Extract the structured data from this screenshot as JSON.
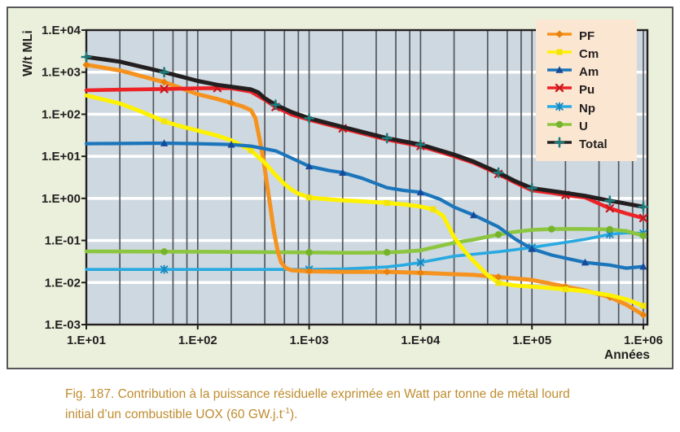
{
  "figure": {
    "background": "#EAF0DB",
    "frame_color": "#55565A",
    "caption": {
      "color": "#BF8C2F",
      "line1": "Fig. 187. Contribution à la puissance résiduelle exprimée en Watt par tonne de métal lourd",
      "line2_pre": "initial d’un combustible UOX (60 GW.j.t",
      "line2_sup": "-1",
      "line2_post": ")."
    }
  },
  "chart_data": {
    "type": "line",
    "x_scale": "log",
    "y_scale": "log",
    "x_range": [
      10,
      1000000
    ],
    "y_range": [
      0.001,
      10000
    ],
    "xlabel": "Années",
    "ylabel": "W/t MLi",
    "x_tick_labels": [
      "1.E+01",
      "1.E+02",
      "1.E+03",
      "1.E+04",
      "1.E+05",
      "1.E+06"
    ],
    "y_tick_labels": [
      "1.E+04",
      "1.E+03",
      "1.E+02",
      "1.E+01",
      "1.E+00",
      "1.E-01",
      "1.E-02",
      "1.E-03"
    ],
    "grid": {
      "plot_background": "#CDD8E0",
      "horizontal_color": "#FFFFFF",
      "vertical_color": "#54565B",
      "axis_color": "#231F20",
      "vertical_minor_multipliers": [
        2,
        4,
        6,
        8
      ]
    },
    "legend_position": "top-right",
    "legend_background": "#FBE7D1",
    "series": [
      {
        "name": "PF",
        "color": "#F6921E",
        "marker": "diamond",
        "marker_color": "#E8820C",
        "width": 5,
        "z": 3,
        "points": [
          [
            10,
            1500
          ],
          [
            20,
            1100
          ],
          [
            50,
            580
          ],
          [
            100,
            300
          ],
          [
            150,
            230
          ],
          [
            200,
            185
          ],
          [
            250,
            155
          ],
          [
            300,
            125
          ],
          [
            330,
            80
          ],
          [
            360,
            25
          ],
          [
            390,
            8
          ],
          [
            420,
            2
          ],
          [
            450,
            0.6
          ],
          [
            480,
            0.18
          ],
          [
            520,
            0.06
          ],
          [
            560,
            0.03
          ],
          [
            620,
            0.022
          ],
          [
            700,
            0.0195
          ],
          [
            1000,
            0.0185
          ],
          [
            2000,
            0.018
          ],
          [
            5000,
            0.018
          ],
          [
            10000,
            0.017
          ],
          [
            20000,
            0.0158
          ],
          [
            30000,
            0.0152
          ],
          [
            50000,
            0.0135
          ],
          [
            100000,
            0.0115
          ],
          [
            200000,
            0.008
          ],
          [
            300000,
            0.0065
          ],
          [
            500000,
            0.0045
          ],
          [
            700000,
            0.003
          ],
          [
            1000000,
            0.0017
          ]
        ],
        "marker_x": [
          10,
          50,
          200,
          1000,
          5000,
          10000,
          50000,
          200000,
          500000,
          1000000
        ]
      },
      {
        "name": "Cm",
        "color": "#FFF200",
        "marker": "square",
        "marker_color": "#F2E30A",
        "width": 5,
        "z": 4,
        "points": [
          [
            10,
            280
          ],
          [
            20,
            180
          ],
          [
            30,
            120
          ],
          [
            50,
            68
          ],
          [
            70,
            52
          ],
          [
            100,
            41
          ],
          [
            150,
            31
          ],
          [
            200,
            24
          ],
          [
            300,
            14
          ],
          [
            400,
            7
          ],
          [
            500,
            3.6
          ],
          [
            600,
            2.2
          ],
          [
            700,
            1.6
          ],
          [
            800,
            1.3
          ],
          [
            1000,
            1.05
          ],
          [
            1500,
            0.95
          ],
          [
            2000,
            0.9
          ],
          [
            3000,
            0.85
          ],
          [
            5000,
            0.78
          ],
          [
            7000,
            0.72
          ],
          [
            10000,
            0.64
          ],
          [
            13000,
            0.55
          ],
          [
            16000,
            0.38
          ],
          [
            20000,
            0.12
          ],
          [
            25000,
            0.055
          ],
          [
            30000,
            0.032
          ],
          [
            40000,
            0.015
          ],
          [
            50000,
            0.0098
          ],
          [
            70000,
            0.0085
          ],
          [
            100000,
            0.008
          ],
          [
            200000,
            0.0069
          ],
          [
            300000,
            0.0062
          ],
          [
            500000,
            0.005
          ],
          [
            700000,
            0.004
          ],
          [
            1000000,
            0.0028
          ]
        ],
        "marker_x": [
          50,
          300,
          1000,
          5000,
          13000,
          50000,
          200000,
          1000000
        ]
      },
      {
        "name": "Am",
        "color": "#1B75BB",
        "marker": "triangle",
        "marker_color": "#164A9A",
        "width": 4.2,
        "z": 5,
        "points": [
          [
            10,
            20
          ],
          [
            50,
            20.5
          ],
          [
            100,
            20
          ],
          [
            200,
            19
          ],
          [
            300,
            17.5
          ],
          [
            500,
            13.5
          ],
          [
            700,
            9
          ],
          [
            1000,
            5.8
          ],
          [
            1500,
            4.6
          ],
          [
            2000,
            4.1
          ],
          [
            3000,
            3
          ],
          [
            5000,
            1.8
          ],
          [
            7000,
            1.55
          ],
          [
            10000,
            1.4
          ],
          [
            15000,
            0.95
          ],
          [
            20000,
            0.62
          ],
          [
            30000,
            0.4
          ],
          [
            50000,
            0.21
          ],
          [
            70000,
            0.11
          ],
          [
            100000,
            0.063
          ],
          [
            150000,
            0.045
          ],
          [
            200000,
            0.038
          ],
          [
            300000,
            0.03
          ],
          [
            500000,
            0.026
          ],
          [
            700000,
            0.022
          ],
          [
            1000000,
            0.024
          ]
        ],
        "marker_x": [
          50,
          200,
          1000,
          2000,
          10000,
          30000,
          100000,
          300000,
          1000000
        ]
      },
      {
        "name": "Pu",
        "color": "#EC2227",
        "marker": "x",
        "marker_color": "#C8191E",
        "width": 4.6,
        "z": 6,
        "points": [
          [
            10,
            370
          ],
          [
            20,
            385
          ],
          [
            50,
            398
          ],
          [
            100,
            412
          ],
          [
            150,
            418
          ],
          [
            200,
            415
          ],
          [
            300,
            345
          ],
          [
            400,
            220
          ],
          [
            500,
            148
          ],
          [
            700,
            98
          ],
          [
            1000,
            74
          ],
          [
            2000,
            46
          ],
          [
            5000,
            25
          ],
          [
            10000,
            17.5
          ],
          [
            20000,
            10
          ],
          [
            30000,
            7
          ],
          [
            50000,
            3.8
          ],
          [
            70000,
            2.4
          ],
          [
            100000,
            1.55
          ],
          [
            150000,
            1.35
          ],
          [
            200000,
            1.2
          ],
          [
            300000,
            1.05
          ],
          [
            500000,
            0.58
          ],
          [
            700000,
            0.44
          ],
          [
            1000000,
            0.34
          ]
        ],
        "marker_x": [
          50,
          150,
          500,
          2000,
          10000,
          50000,
          200000,
          500000,
          1000000
        ]
      },
      {
        "name": "Np",
        "color": "#27A9E1",
        "marker": "asterisk",
        "marker_color": "#1787BE",
        "width": 3.6,
        "z": 1,
        "points": [
          [
            10,
            0.0205
          ],
          [
            100,
            0.0205
          ],
          [
            500,
            0.0205
          ],
          [
            1000,
            0.0205
          ],
          [
            2000,
            0.021
          ],
          [
            3000,
            0.022
          ],
          [
            5000,
            0.0235
          ],
          [
            7000,
            0.026
          ],
          [
            10000,
            0.03
          ],
          [
            20000,
            0.0425
          ],
          [
            30000,
            0.047
          ],
          [
            50000,
            0.054
          ],
          [
            70000,
            0.06
          ],
          [
            100000,
            0.068
          ],
          [
            200000,
            0.09
          ],
          [
            300000,
            0.107
          ],
          [
            500000,
            0.14
          ],
          [
            700000,
            0.152
          ],
          [
            1000000,
            0.148
          ]
        ],
        "marker_x": [
          50,
          1000,
          10000,
          100000,
          500000,
          1000000
        ]
      },
      {
        "name": "U",
        "color": "#8CC63F",
        "marker": "circle",
        "marker_color": "#76B32C",
        "width": 4.6,
        "z": 2,
        "points": [
          [
            10,
            0.055
          ],
          [
            100,
            0.054
          ],
          [
            500,
            0.0525
          ],
          [
            1000,
            0.052
          ],
          [
            2000,
            0.051
          ],
          [
            3000,
            0.051
          ],
          [
            5000,
            0.052
          ],
          [
            7000,
            0.054
          ],
          [
            10000,
            0.058
          ],
          [
            20000,
            0.088
          ],
          [
            30000,
            0.105
          ],
          [
            50000,
            0.138
          ],
          [
            70000,
            0.16
          ],
          [
            100000,
            0.178
          ],
          [
            150000,
            0.186
          ],
          [
            200000,
            0.188
          ],
          [
            300000,
            0.188
          ],
          [
            500000,
            0.183
          ],
          [
            700000,
            0.168
          ],
          [
            1000000,
            0.13
          ]
        ],
        "marker_x": [
          50,
          1000,
          5000,
          50000,
          150000,
          500000,
          1000000
        ]
      },
      {
        "name": "Total",
        "color": "#231F20",
        "marker": "plus",
        "marker_color": "#1D7C7C",
        "width": 5,
        "z": 7,
        "points": [
          [
            10,
            2300
          ],
          [
            20,
            1780
          ],
          [
            50,
            1000
          ],
          [
            100,
            620
          ],
          [
            150,
            500
          ],
          [
            200,
            450
          ],
          [
            300,
            390
          ],
          [
            350,
            330
          ],
          [
            400,
            240
          ],
          [
            500,
            168
          ],
          [
            700,
            112
          ],
          [
            1000,
            80
          ],
          [
            2000,
            50
          ],
          [
            5000,
            27
          ],
          [
            10000,
            19
          ],
          [
            20000,
            11
          ],
          [
            30000,
            7.5
          ],
          [
            50000,
            4.1
          ],
          [
            70000,
            2.6
          ],
          [
            100000,
            1.75
          ],
          [
            150000,
            1.5
          ],
          [
            200000,
            1.35
          ],
          [
            300000,
            1.15
          ],
          [
            500000,
            0.88
          ],
          [
            700000,
            0.75
          ],
          [
            1000000,
            0.63
          ]
        ],
        "marker_x": [
          10,
          50,
          500,
          1000,
          5000,
          10000,
          50000,
          100000,
          500000,
          1000000
        ]
      }
    ]
  }
}
